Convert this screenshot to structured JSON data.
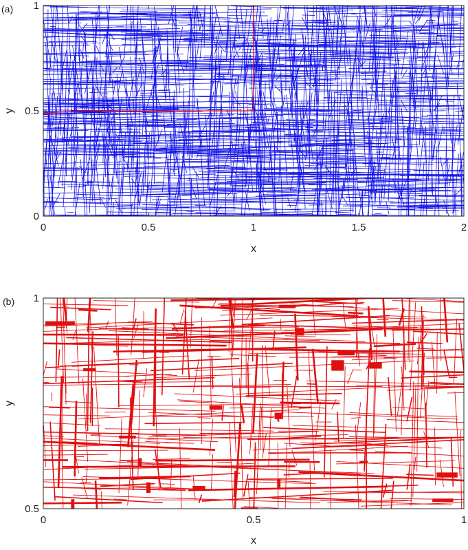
{
  "chart_data": [
    {
      "panel_label": "(a)",
      "type": "line",
      "xlabel": "x",
      "ylabel": "y",
      "xlim": [
        0,
        2
      ],
      "ylim": [
        0,
        1
      ],
      "xticks": [
        0,
        0.5,
        1,
        1.5,
        2
      ],
      "xtick_labels": [
        "0",
        "0.5",
        "1",
        "1.5",
        "2"
      ],
      "yticks": [
        0,
        0.5,
        1
      ],
      "ytick_labels": [
        "0",
        "0.5",
        "1"
      ],
      "grid": false,
      "legend": "none",
      "series_colors": [
        "#1010e8",
        "#e01010"
      ],
      "series": [
        {
          "style": "dense random fracture network (~1500 segments, mostly near-horizontal and near-vertical)",
          "color": "#1010e8",
          "segment_count": 1500,
          "segments_sample": [
            [
              [
                0.05,
                0.87
              ],
              [
                0.62,
                0.85
              ]
            ],
            [
              [
                0.3,
                0.02
              ],
              [
                1.45,
                0.0
              ]
            ],
            [
              [
                0.9,
                0.76
              ],
              [
                1.7,
                0.74
              ]
            ],
            [
              [
                0.21,
                0.15
              ],
              [
                0.24,
                0.62
              ]
            ],
            [
              [
                1.33,
                0.41
              ],
              [
                1.35,
                0.93
              ]
            ],
            [
              [
                0.55,
                0.3
              ],
              [
                1.1,
                0.33
              ]
            ],
            [
              [
                1.62,
                0.08
              ],
              [
                1.65,
                0.55
              ]
            ],
            [
              [
                0.72,
                0.51
              ],
              [
                0.7,
                0.98
              ]
            ]
          ]
        },
        {
          "style": "red path",
          "color": "#e01010",
          "path": [
            [
              0.0,
              0.49
            ],
            [
              0.2,
              0.5
            ],
            [
              0.65,
              0.5
            ],
            [
              1.0,
              0.5
            ],
            [
              1.0,
              1.0
            ]
          ]
        }
      ]
    },
    {
      "panel_label": "(b)",
      "type": "line",
      "xlabel": "x",
      "ylabel": "y",
      "xlim": [
        0,
        1
      ],
      "ylim": [
        0.5,
        1
      ],
      "xticks": [
        0,
        0.5,
        1
      ],
      "xtick_labels": [
        "0",
        "0.5",
        "1"
      ],
      "yticks": [
        0.5,
        1
      ],
      "ytick_labels": [
        "0.5",
        "1"
      ],
      "grid": false,
      "legend": "none",
      "series": [
        {
          "style": "zoomed fracture network with variable segment widths",
          "color": "#e01010",
          "segment_count": 400,
          "thick_markers": [
            {
              "x": 0.04,
              "y": 0.94,
              "w": 0.07,
              "h": 0.01
            },
            {
              "x": 0.58,
              "y": 0.98,
              "w": 0.04,
              "h": 0.008
            },
            {
              "x": 0.61,
              "y": 0.92,
              "w": 0.02,
              "h": 0.018
            },
            {
              "x": 0.72,
              "y": 0.87,
              "w": 0.04,
              "h": 0.012
            },
            {
              "x": 0.7,
              "y": 0.84,
              "w": 0.03,
              "h": 0.025
            },
            {
              "x": 0.79,
              "y": 0.84,
              "w": 0.03,
              "h": 0.015
            },
            {
              "x": 0.96,
              "y": 0.58,
              "w": 0.05,
              "h": 0.012
            },
            {
              "x": 0.41,
              "y": 0.74,
              "w": 0.03,
              "h": 0.01
            },
            {
              "x": 0.2,
              "y": 0.67,
              "w": 0.04,
              "h": 0.007
            },
            {
              "x": 0.56,
              "y": 0.72,
              "w": 0.02,
              "h": 0.015
            },
            {
              "x": 0.95,
              "y": 0.52,
              "w": 0.05,
              "h": 0.008
            },
            {
              "x": 0.25,
              "y": 0.55,
              "w": 0.01,
              "h": 0.025
            },
            {
              "x": 0.37,
              "y": 0.55,
              "w": 0.03,
              "h": 0.008
            },
            {
              "x": 0.07,
              "y": 0.51,
              "w": 0.008,
              "h": 0.025
            },
            {
              "x": 0.56,
              "y": 0.56,
              "w": 0.008,
              "h": 0.02
            },
            {
              "x": 0.49,
              "y": 0.5,
              "w": 0.04,
              "h": 0.006
            },
            {
              "x": 0.23,
              "y": 0.61,
              "w": 0.008,
              "h": 0.02
            },
            {
              "x": 0.11,
              "y": 0.83,
              "w": 0.03,
              "h": 0.007
            }
          ]
        }
      ]
    }
  ]
}
